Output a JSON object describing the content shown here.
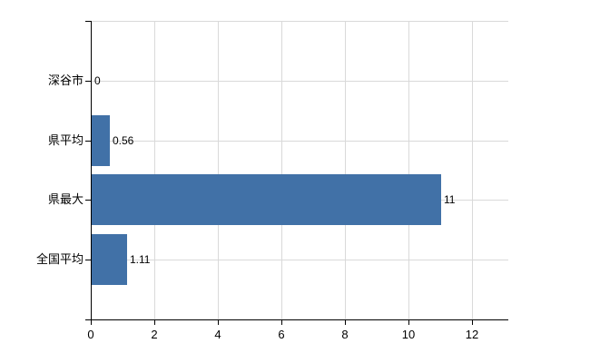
{
  "chart_data": {
    "type": "bar",
    "orientation": "horizontal",
    "title": "",
    "xlabel": "",
    "ylabel": "",
    "categories": [
      "深谷市",
      "県平均",
      "県最大",
      "全国平均"
    ],
    "values": [
      0,
      0.56,
      11,
      1.11
    ],
    "value_labels": [
      "0",
      "0.56",
      "11",
      "1.11"
    ],
    "x_ticks": [
      0,
      2,
      4,
      6,
      8,
      10,
      12
    ],
    "x_tick_labels": [
      "0",
      "2",
      "4",
      "6",
      "8",
      "10",
      "12"
    ],
    "xlim": [
      0,
      13.14
    ],
    "grid": true,
    "legend": false,
    "bar_color": "#4171a7",
    "gridline_color": "#d9d9d9",
    "axis_color": "#000000",
    "text_color": "#000000",
    "background_color": "#ffffff"
  }
}
